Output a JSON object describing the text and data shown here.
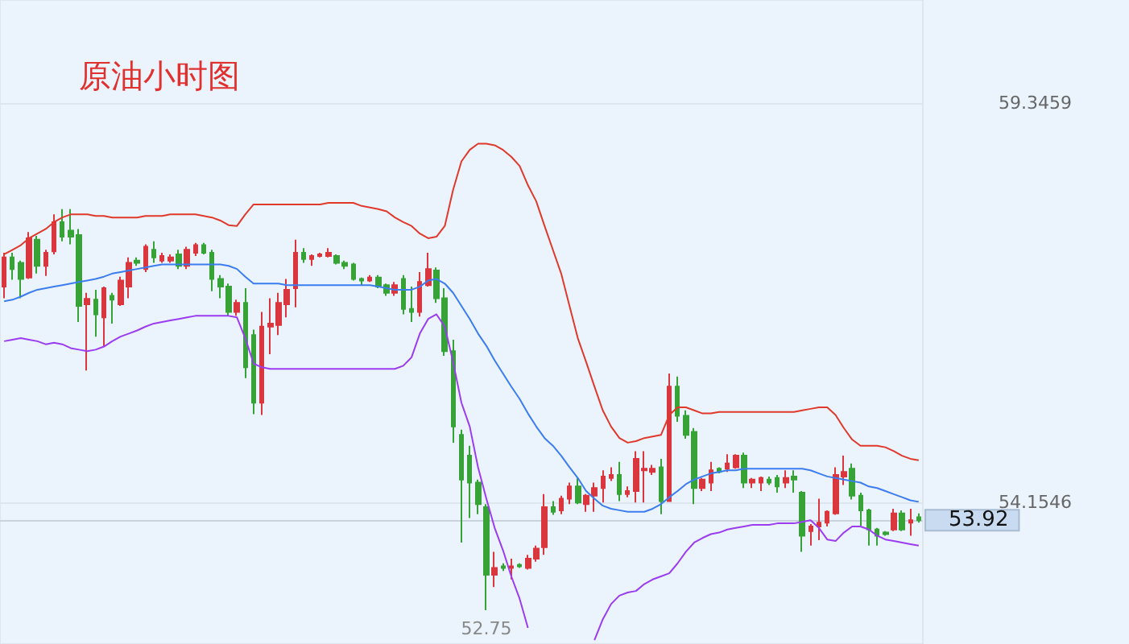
{
  "chart_data": {
    "type": "candlestick",
    "title": "原油小时图",
    "categories": [
      null,
      null,
      null,
      null,
      null,
      null,
      null,
      null,
      null,
      null,
      null,
      null,
      null,
      null,
      null,
      null,
      null,
      null,
      null,
      null,
      null,
      null,
      null,
      null,
      null,
      null,
      null,
      null,
      null,
      null,
      null,
      null,
      null,
      null,
      null,
      null,
      null,
      null,
      null,
      null,
      null,
      null,
      null,
      null,
      null,
      null,
      null,
      null,
      null,
      null,
      null,
      null,
      null,
      null,
      null,
      null,
      null,
      null,
      null,
      null,
      null,
      null,
      null,
      null,
      null,
      null,
      null,
      null,
      null,
      null,
      null,
      null,
      null,
      null,
      null,
      null,
      null,
      null,
      null,
      null,
      null,
      null,
      null,
      null,
      null,
      null,
      null,
      null,
      null,
      null,
      null,
      null,
      null,
      null,
      null,
      null,
      null,
      null,
      null,
      null,
      null,
      null,
      null,
      null,
      null,
      null,
      null,
      null,
      null,
      null,
      null
    ],
    "ohlc": [
      [
        56.96,
        57.4,
        56.81,
        57.34
      ],
      [
        57.34,
        57.4,
        57.05,
        57.19
      ],
      [
        57.27,
        57.3,
        56.81,
        57.06
      ],
      [
        57.08,
        57.67,
        57.06,
        57.59
      ],
      [
        57.57,
        57.62,
        57.13,
        57.23
      ],
      [
        57.23,
        57.44,
        57.1,
        57.4
      ],
      [
        57.42,
        57.9,
        57.38,
        57.8
      ],
      [
        57.8,
        57.97,
        57.55,
        57.61
      ],
      [
        57.69,
        57.97,
        57.51,
        57.61
      ],
      [
        57.63,
        57.71,
        56.5,
        56.71
      ],
      [
        56.73,
        56.88,
        55.87,
        56.8
      ],
      [
        56.79,
        56.92,
        56.31,
        56.6
      ],
      [
        56.56,
        56.96,
        56.18,
        56.94
      ],
      [
        56.84,
        56.88,
        56.48,
        56.79
      ],
      [
        56.73,
        57.09,
        56.71,
        57.04
      ],
      [
        56.96,
        57.34,
        56.81,
        57.27
      ],
      [
        57.3,
        57.34,
        57.23,
        57.27
      ],
      [
        57.19,
        57.51,
        57.15,
        57.48
      ],
      [
        57.44,
        57.55,
        57.27,
        57.34
      ],
      [
        57.3,
        57.4,
        57.27,
        57.36
      ],
      [
        57.3,
        57.38,
        57.27,
        57.34
      ],
      [
        57.38,
        57.44,
        57.19,
        57.23
      ],
      [
        57.23,
        57.48,
        57.19,
        57.44
      ],
      [
        57.4,
        57.53,
        57.36,
        57.5
      ],
      [
        57.5,
        57.53,
        57.38,
        57.4
      ],
      [
        57.4,
        57.44,
        56.9,
        57.06
      ],
      [
        57.06,
        57.11,
        56.81,
        56.96
      ],
      [
        56.96,
        57.0,
        56.58,
        56.63
      ],
      [
        56.63,
        56.79,
        56.58,
        56.75
      ],
      [
        56.75,
        56.94,
        55.77,
        55.91
      ],
      [
        56.33,
        56.4,
        55.3,
        55.45
      ],
      [
        55.45,
        56.63,
        55.29,
        56.44
      ],
      [
        56.44,
        56.81,
        56.08,
        56.48
      ],
      [
        56.46,
        56.88,
        56.33,
        56.75
      ],
      [
        56.73,
        57.06,
        56.56,
        56.92
      ],
      [
        56.94,
        57.57,
        56.69,
        57.4
      ],
      [
        57.4,
        57.46,
        57.27,
        57.32
      ],
      [
        57.32,
        57.38,
        57.23,
        57.36
      ],
      [
        57.36,
        57.4,
        57.34,
        57.38
      ],
      [
        57.36,
        57.46,
        57.34,
        57.4
      ],
      [
        57.36,
        57.38,
        57.25,
        57.27
      ],
      [
        57.27,
        57.3,
        57.19,
        57.23
      ],
      [
        57.25,
        57.27,
        57.04,
        57.06
      ],
      [
        57.06,
        57.08,
        56.98,
        57.04
      ],
      [
        57.04,
        57.11,
        57.02,
        57.08
      ],
      [
        57.08,
        57.11,
        56.94,
        56.96
      ],
      [
        56.98,
        57.0,
        56.84,
        56.88
      ],
      [
        56.88,
        57.02,
        56.84,
        56.98
      ],
      [
        57.06,
        57.11,
        56.6,
        56.67
      ],
      [
        56.67,
        56.96,
        56.5,
        56.63
      ],
      [
        56.63,
        57.15,
        56.57,
        57.02
      ],
      [
        56.98,
        57.4,
        56.96,
        57.19
      ],
      [
        57.17,
        57.21,
        56.75,
        56.81
      ],
      [
        56.81,
        56.94,
        56.06,
        56.12
      ],
      [
        56.12,
        56.27,
        54.93,
        55.14
      ],
      [
        55.03,
        55.1,
        53.63,
        54.45
      ],
      [
        54.76,
        54.89,
        53.95,
        54.41
      ],
      [
        54.41,
        54.45,
        54.0,
        54.13
      ],
      [
        54.09,
        54.13,
        52.75,
        53.21
      ],
      [
        53.21,
        53.51,
        53.05,
        53.3
      ],
      [
        53.32,
        53.36,
        53.26,
        53.3
      ],
      [
        53.3,
        53.42,
        53.15,
        53.32
      ],
      [
        53.34,
        53.36,
        53.3,
        53.32
      ],
      [
        53.3,
        53.47,
        53.28,
        53.42
      ],
      [
        53.42,
        53.59,
        53.38,
        53.55
      ],
      [
        53.57,
        54.26,
        53.47,
        54.09
      ],
      [
        54.09,
        54.17,
        53.99,
        54.03
      ],
      [
        54.05,
        54.24,
        54.0,
        54.2
      ],
      [
        54.2,
        54.41,
        54.13,
        54.36
      ],
      [
        54.36,
        54.47,
        54.13,
        54.15
      ],
      [
        54.13,
        54.26,
        54.03,
        54.24
      ],
      [
        54.24,
        54.41,
        54.03,
        54.34
      ],
      [
        54.34,
        54.57,
        54.15,
        54.49
      ],
      [
        54.47,
        54.61,
        54.43,
        54.51
      ],
      [
        54.51,
        54.68,
        54.17,
        54.26
      ],
      [
        54.26,
        54.36,
        54.22,
        54.3
      ],
      [
        54.3,
        54.82,
        54.15,
        54.72
      ],
      [
        54.57,
        54.82,
        54.15,
        54.59
      ],
      [
        54.55,
        54.64,
        54.51,
        54.59
      ],
      [
        54.61,
        54.72,
        54.0,
        54.17
      ],
      [
        54.17,
        55.83,
        54.17,
        55.66
      ],
      [
        55.66,
        55.79,
        55.2,
        55.28
      ],
      [
        55.28,
        55.35,
        54.98,
        55.03
      ],
      [
        55.07,
        55.12,
        54.13,
        54.34
      ],
      [
        54.34,
        54.47,
        54.3,
        54.45
      ],
      [
        54.41,
        54.68,
        54.3,
        54.57
      ],
      [
        54.59,
        54.61,
        54.53,
        54.55
      ],
      [
        54.59,
        54.78,
        54.55,
        54.66
      ],
      [
        54.61,
        54.78,
        54.59,
        54.76
      ],
      [
        54.76,
        54.8,
        54.34,
        54.41
      ],
      [
        54.41,
        54.47,
        54.34,
        54.45
      ],
      [
        54.41,
        54.49,
        54.3,
        54.47
      ],
      [
        54.45,
        54.49,
        54.38,
        54.41
      ],
      [
        54.47,
        54.51,
        54.28,
        54.36
      ],
      [
        54.41,
        54.57,
        54.34,
        54.47
      ],
      [
        54.49,
        54.57,
        54.28,
        54.45
      ],
      [
        54.28,
        54.3,
        53.51,
        53.72
      ],
      [
        53.78,
        53.87,
        53.59,
        53.84
      ],
      [
        53.84,
        54.2,
        53.66,
        53.89
      ],
      [
        53.89,
        54.05,
        53.84,
        54.03
      ],
      [
        54.01,
        54.61,
        53.99,
        54.51
      ],
      [
        54.49,
        54.76,
        54.38,
        54.55
      ],
      [
        54.59,
        54.66,
        54.19,
        54.24
      ],
      [
        54.24,
        54.28,
        53.85,
        54.05
      ],
      [
        54.05,
        54.07,
        53.59,
        53.8
      ],
      [
        53.8,
        53.82,
        53.59,
        53.72
      ],
      [
        53.76,
        53.78,
        53.72,
        53.74
      ],
      [
        53.8,
        54.07,
        53.78,
        54.01
      ],
      [
        54.01,
        54.05,
        53.78,
        53.8
      ],
      [
        53.89,
        54.07,
        53.72,
        53.92
      ],
      [
        53.96,
        54.01,
        53.89,
        53.92
      ]
    ],
    "colors": [
      "#d9363e",
      "#37a337",
      "#37a337",
      "#d9363e",
      "#37a337",
      "#d9363e",
      "#d9363e",
      "#37a337",
      "#37a337",
      "#37a337",
      "#d9363e",
      "#37a337",
      "#d9363e",
      "#37a337",
      "#d9363e",
      "#d9363e",
      "#37a337",
      "#d9363e",
      "#37a337",
      "#d9363e",
      "#d9363e",
      "#37a337",
      "#d9363e",
      "#d9363e",
      "#37a337",
      "#37a337",
      "#37a337",
      "#37a337",
      "#d9363e",
      "#37a337",
      "#37a337",
      "#d9363e",
      "#d9363e",
      "#d9363e",
      "#d9363e",
      "#d9363e",
      "#37a337",
      "#d9363e",
      "#d9363e",
      "#d9363e",
      "#37a337",
      "#37a337",
      "#37a337",
      "#37a337",
      "#d9363e",
      "#37a337",
      "#37a337",
      "#d9363e",
      "#37a337",
      "#37a337",
      "#d9363e",
      "#d9363e",
      "#37a337",
      "#37a337",
      "#37a337",
      "#37a337",
      "#37a337",
      "#37a337",
      "#37a337",
      "#d9363e",
      "#37a337",
      "#d9363e",
      "#37a337",
      "#d9363e",
      "#d9363e",
      "#d9363e",
      "#37a337",
      "#d9363e",
      "#d9363e",
      "#37a337",
      "#d9363e",
      "#d9363e",
      "#d9363e",
      "#d9363e",
      "#37a337",
      "#d9363e",
      "#d9363e",
      "#d9363e",
      "#d9363e",
      "#37a337",
      "#d9363e",
      "#37a337",
      "#37a337",
      "#37a337",
      "#d9363e",
      "#d9363e",
      "#37a337",
      "#d9363e",
      "#d9363e",
      "#37a337",
      "#d9363e",
      "#d9363e",
      "#37a337",
      "#37a337",
      "#d9363e",
      "#37a337",
      "#37a337",
      "#d9363e",
      "#d9363e",
      "#d9363e",
      "#d9363e",
      "#d9363e",
      "#37a337",
      "#37a337",
      "#37a337",
      "#37a337",
      "#37a337",
      "#d9363e",
      "#37a337",
      "#d9363e",
      "#37a337"
    ],
    "series": [
      {
        "type": "line",
        "color": "#e0392b",
        "values": [
          57.38,
          57.44,
          57.5,
          57.59,
          57.65,
          57.71,
          57.8,
          57.86,
          57.9,
          57.9,
          57.9,
          57.88,
          57.88,
          57.86,
          57.86,
          57.86,
          57.86,
          57.88,
          57.88,
          57.88,
          57.9,
          57.9,
          57.9,
          57.9,
          57.88,
          57.86,
          57.82,
          57.76,
          57.75,
          57.9,
          58.03,
          58.03,
          58.03,
          58.03,
          58.03,
          58.03,
          58.03,
          58.03,
          58.03,
          58.05,
          58.05,
          58.05,
          58.05,
          58.01,
          57.99,
          57.97,
          57.94,
          57.86,
          57.8,
          57.75,
          57.65,
          57.59,
          57.61,
          57.75,
          58.22,
          58.59,
          58.74,
          58.82,
          58.82,
          58.8,
          58.74,
          58.65,
          58.53,
          58.28,
          58.07,
          57.75,
          57.44,
          57.13,
          56.71,
          56.29,
          55.98,
          55.66,
          55.35,
          55.14,
          54.99,
          54.93,
          54.95,
          54.99,
          55.01,
          55.03,
          55.29,
          55.39,
          55.39,
          55.35,
          55.31,
          55.31,
          55.33,
          55.33,
          55.33,
          55.33,
          55.33,
          55.33,
          55.33,
          55.33,
          55.33,
          55.33,
          55.35,
          55.37,
          55.39,
          55.39,
          55.29,
          55.12,
          54.97,
          54.89,
          54.89,
          54.89,
          54.87,
          54.82,
          54.76,
          54.72,
          54.7
        ]
      },
      {
        "type": "line",
        "color": "#3b7df0",
        "values": [
          56.77,
          56.79,
          56.83,
          56.88,
          56.92,
          56.94,
          56.96,
          56.98,
          57.0,
          57.02,
          57.04,
          57.06,
          57.09,
          57.13,
          57.15,
          57.17,
          57.19,
          57.21,
          57.23,
          57.25,
          57.25,
          57.25,
          57.25,
          57.25,
          57.25,
          57.25,
          57.25,
          57.23,
          57.19,
          57.09,
          57.0,
          57.0,
          57.0,
          57.0,
          56.98,
          56.98,
          56.98,
          56.98,
          56.98,
          56.98,
          56.98,
          56.98,
          56.98,
          56.98,
          56.98,
          56.96,
          56.94,
          56.92,
          56.92,
          56.92,
          56.96,
          57.04,
          57.06,
          57.0,
          56.88,
          56.71,
          56.54,
          56.35,
          56.19,
          56.0,
          55.83,
          55.66,
          55.5,
          55.31,
          55.14,
          54.99,
          54.89,
          54.76,
          54.61,
          54.47,
          54.3,
          54.2,
          54.11,
          54.07,
          54.05,
          54.03,
          54.03,
          54.03,
          54.07,
          54.13,
          54.22,
          54.3,
          54.39,
          54.45,
          54.49,
          54.53,
          54.55,
          54.57,
          54.57,
          54.59,
          54.59,
          54.59,
          54.59,
          54.59,
          54.59,
          54.59,
          54.59,
          54.57,
          54.53,
          54.49,
          54.47,
          54.45,
          54.43,
          54.41,
          54.36,
          54.34,
          54.3,
          54.26,
          54.22,
          54.18,
          54.16
        ]
      },
      {
        "type": "line",
        "color": "#9b3cf0",
        "values": [
          56.25,
          56.27,
          56.29,
          56.27,
          56.25,
          56.21,
          56.23,
          56.21,
          56.16,
          56.14,
          56.12,
          56.14,
          56.18,
          56.25,
          56.31,
          56.35,
          56.39,
          56.44,
          56.48,
          56.5,
          56.52,
          56.54,
          56.56,
          56.58,
          56.58,
          56.58,
          56.58,
          56.58,
          56.56,
          56.29,
          55.96,
          55.91,
          55.89,
          55.89,
          55.89,
          55.89,
          55.89,
          55.89,
          55.89,
          55.89,
          55.89,
          55.89,
          55.89,
          55.89,
          55.89,
          55.89,
          55.89,
          55.89,
          55.93,
          56.04,
          56.35,
          56.54,
          56.6,
          56.44,
          55.98,
          55.45,
          55.14,
          54.61,
          54.2,
          53.82,
          53.53,
          53.19,
          52.9,
          52.52,
          null,
          null,
          null,
          null,
          null,
          null,
          null,
          52.36,
          52.63,
          52.83,
          52.94,
          52.98,
          53.0,
          53.09,
          53.15,
          53.19,
          53.23,
          53.36,
          53.51,
          53.63,
          53.69,
          53.74,
          53.76,
          53.8,
          53.82,
          53.84,
          53.86,
          53.86,
          53.86,
          53.88,
          53.88,
          53.88,
          53.9,
          53.92,
          53.82,
          53.67,
          53.65,
          53.76,
          53.84,
          53.84,
          53.8,
          53.72,
          53.67,
          53.65,
          53.63,
          53.61,
          53.59
        ]
      }
    ],
    "ylim": [
      52.31,
      60.69
    ],
    "yticks": [
      59.3459,
      54.1546
    ],
    "grid": "y",
    "marker": "none",
    "ref_lines": [
      {
        "axis": "y",
        "value": 53.92,
        "label": "53.92"
      }
    ],
    "annotations": [
      {
        "text": "52.75",
        "y": 52.75
      }
    ]
  }
}
